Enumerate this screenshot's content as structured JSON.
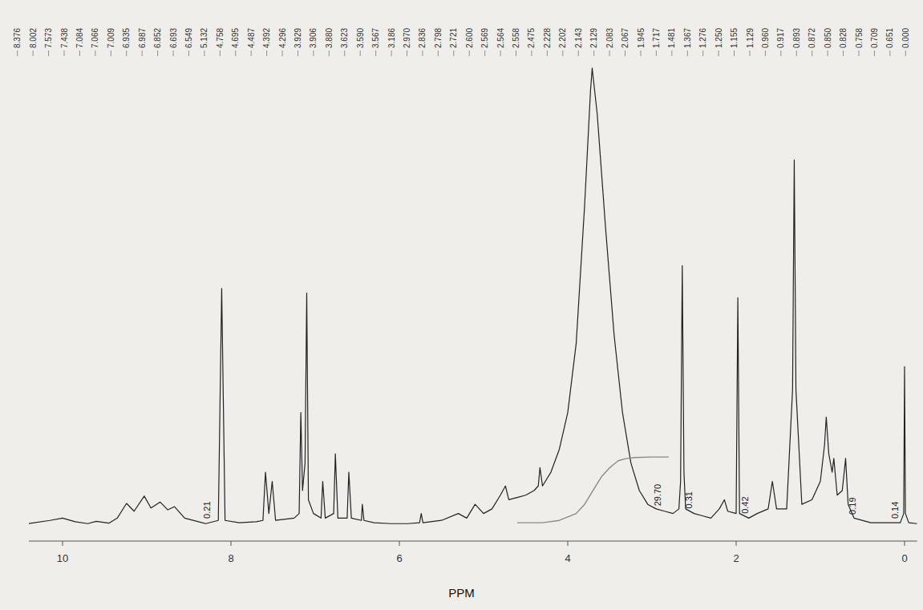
{
  "chart_data": {
    "type": "line",
    "x_label": "PPM",
    "xlim": [
      10.4,
      -0.15
    ],
    "ylim": [
      -3,
      102
    ],
    "xticks": [
      10,
      8,
      6,
      4,
      2,
      0
    ],
    "grid": false,
    "tick_labels": "x",
    "peak_labels": [
      "8.376",
      "8.002",
      "7.573",
      "7.438",
      "7.084",
      "7.066",
      "7.009",
      "6.935",
      "6.987",
      "6.852",
      "6.693",
      "6.549",
      "5.132",
      "4.758",
      "4.695",
      "4.487",
      "4.392",
      "4.296",
      "3.929",
      "3.906",
      "3.880",
      "3.623",
      "3.590",
      "3.567",
      "3.186",
      "2.970",
      "2.836",
      "2.798",
      "2.721",
      "2.600",
      "2.569",
      "2.564",
      "2.558",
      "2.475",
      "2.228",
      "2.202",
      "2.143",
      "2.129",
      "2.083",
      "2.067",
      "1.945",
      "1.717",
      "1.481",
      "1.367",
      "1.276",
      "1.250",
      "1.155",
      "1.129",
      "0.960",
      "0.917",
      "0.893",
      "0.872",
      "0.850",
      "0.828",
      "0.758",
      "0.709",
      "0.651",
      "0.000"
    ],
    "annotations": [
      {
        "text": "0.21",
        "x": 8.25
      },
      {
        "text": "29.70",
        "x": 2.9
      },
      {
        "text": "0.31",
        "x": 2.52
      },
      {
        "text": "0.42",
        "x": 1.86
      },
      {
        "text": "0.19",
        "x": 0.58
      },
      {
        "text": "0.14",
        "x": 0.08
      }
    ],
    "series": [
      {
        "color": "#222222",
        "line_style": "solid",
        "x": [
          10.4,
          10.15,
          10.0,
          9.85,
          9.7,
          9.6,
          9.45,
          9.35,
          9.24,
          9.15,
          9.03,
          8.95,
          8.84,
          8.75,
          8.67,
          8.55,
          8.3,
          8.15,
          8.11,
          8.07,
          7.9,
          7.7,
          7.62,
          7.59,
          7.55,
          7.51,
          7.47,
          7.25,
          7.19,
          7.17,
          7.15,
          7.12,
          7.1,
          7.08,
          7.02,
          6.93,
          6.91,
          6.88,
          6.78,
          6.76,
          6.73,
          6.62,
          6.6,
          6.57,
          6.45,
          6.44,
          6.42,
          6.3,
          6.1,
          5.9,
          5.76,
          5.74,
          5.72,
          5.5,
          5.3,
          5.2,
          5.1,
          5.0,
          4.9,
          4.8,
          4.74,
          4.7,
          4.6,
          4.5,
          4.4,
          4.35,
          4.33,
          4.3,
          4.2,
          4.1,
          4.0,
          3.9,
          3.8,
          3.73,
          3.71,
          3.65,
          3.55,
          3.45,
          3.35,
          3.25,
          3.15,
          3.05,
          2.95,
          2.85,
          2.75,
          2.68,
          2.66,
          2.64,
          2.62,
          2.6,
          2.5,
          2.4,
          2.3,
          2.2,
          2.14,
          2.1,
          2.0,
          1.98,
          1.96,
          1.85,
          1.75,
          1.62,
          1.57,
          1.52,
          1.4,
          1.33,
          1.31,
          1.29,
          1.22,
          1.1,
          1.0,
          0.95,
          0.93,
          0.9,
          0.86,
          0.84,
          0.8,
          0.74,
          0.7,
          0.67,
          0.6,
          0.4,
          0.2,
          0.05,
          0.01,
          0.0,
          -0.01,
          -0.05,
          -0.15
        ],
        "values": [
          0.8,
          1.5,
          2.0,
          1.2,
          0.8,
          1.3,
          0.9,
          2.0,
          5.2,
          3.5,
          6.8,
          4.2,
          5.5,
          3.8,
          4.5,
          2.0,
          0.8,
          1.5,
          52,
          1.5,
          1.0,
          1.2,
          1.5,
          12,
          3,
          10,
          1.5,
          2,
          3,
          25,
          8,
          14,
          51,
          6,
          3,
          2,
          10,
          2,
          3,
          16,
          2,
          2,
          12,
          2,
          1.5,
          5,
          1.5,
          1.0,
          0.8,
          0.8,
          1,
          3,
          1,
          1.5,
          3,
          2,
          5,
          3,
          4,
          7,
          9,
          6,
          6.5,
          7,
          8,
          9,
          13,
          9,
          12,
          17,
          25,
          40,
          70,
          95,
          100,
          90,
          65,
          42,
          25,
          14,
          8,
          5,
          4,
          3.5,
          3,
          4,
          10,
          57,
          12,
          4,
          3,
          2.5,
          2,
          4,
          6,
          3.5,
          3,
          50,
          3,
          2,
          3,
          4,
          10,
          4,
          4,
          30,
          80,
          30,
          5,
          6,
          10,
          18,
          24,
          16,
          12,
          15,
          7,
          8,
          15,
          5,
          2,
          1,
          1,
          1,
          3,
          35,
          3,
          1,
          0.8
        ]
      },
      {
        "color": "#8a8a8a",
        "line_style": "solid",
        "x": [
          4.6,
          4.3,
          4.1,
          3.9,
          3.8,
          3.7,
          3.6,
          3.5,
          3.4,
          3.3,
          3.2,
          3.0,
          2.8
        ],
        "values": [
          1,
          1,
          1.5,
          3,
          5,
          8,
          11,
          13,
          14.5,
          15,
          15.2,
          15.3,
          15.3
        ]
      }
    ]
  }
}
